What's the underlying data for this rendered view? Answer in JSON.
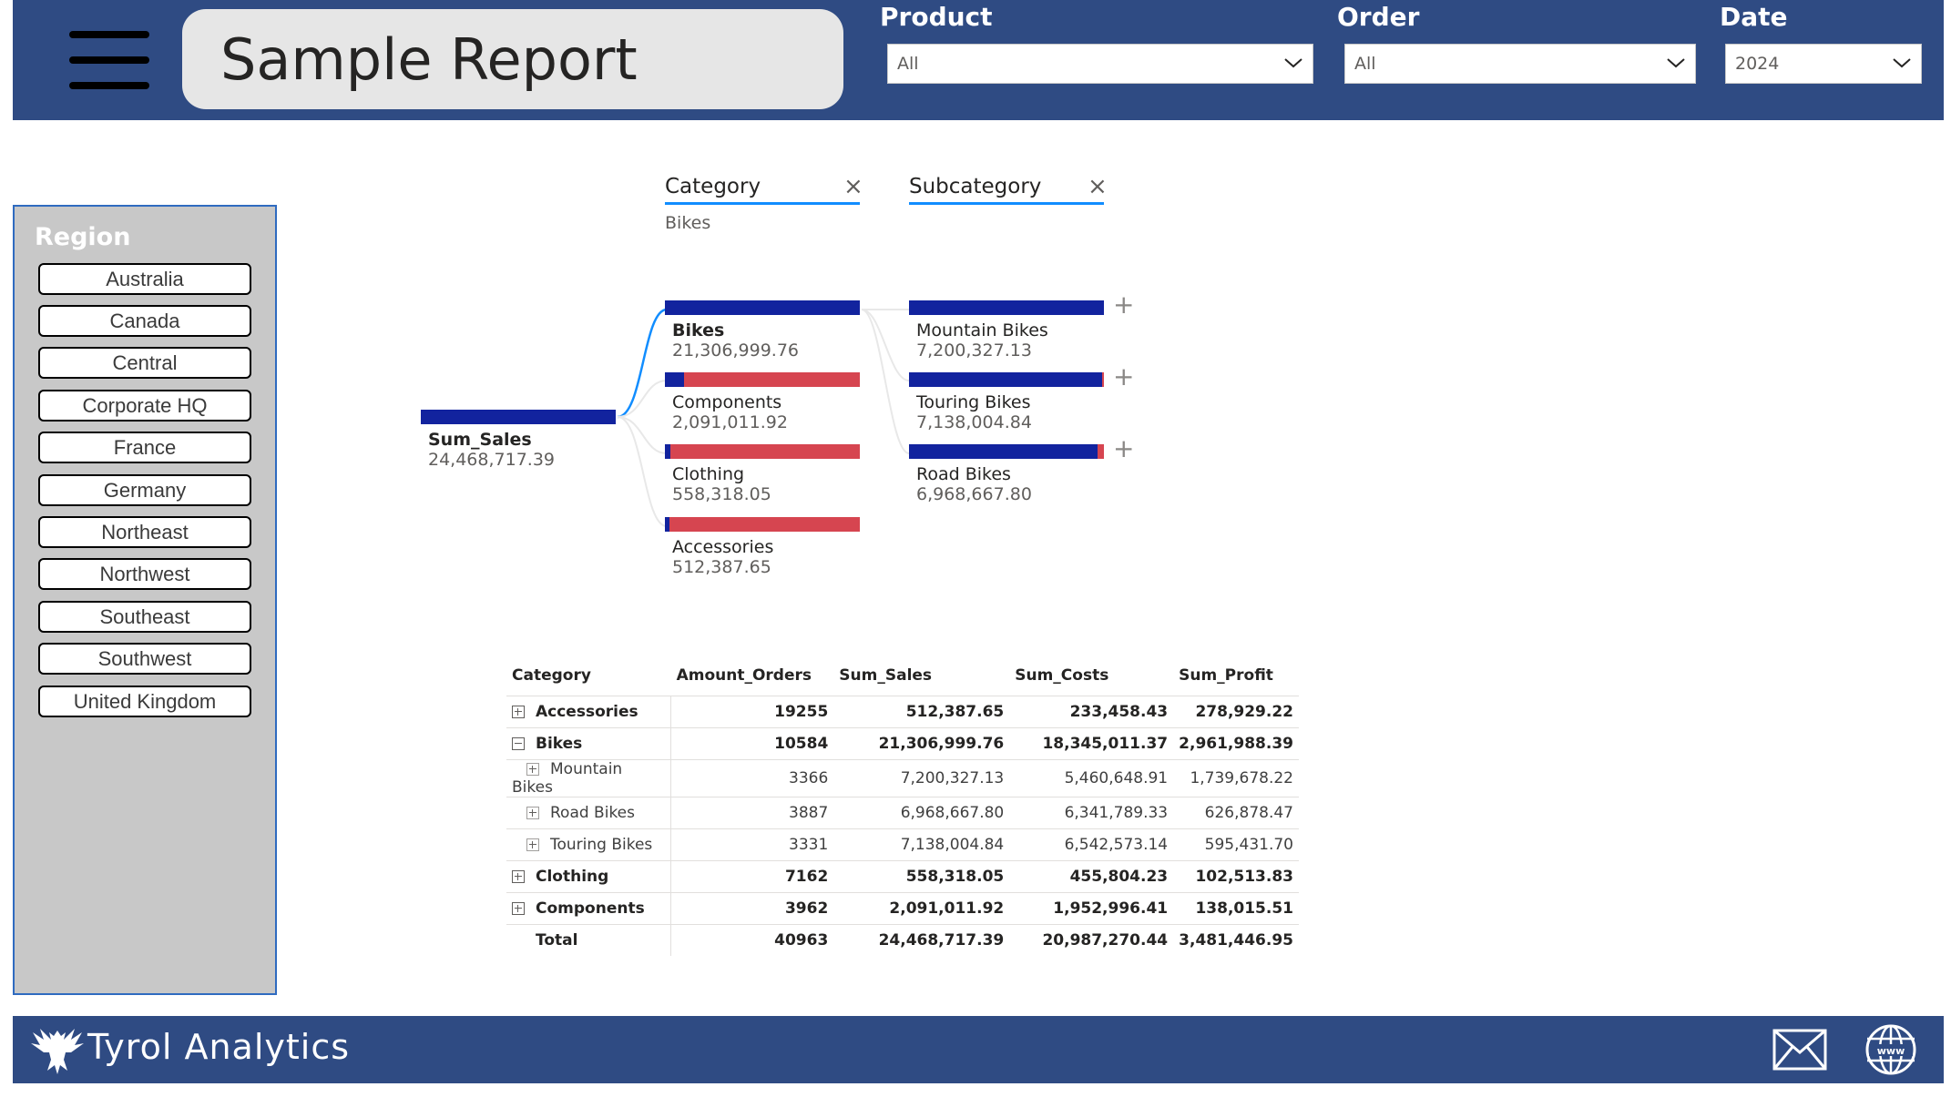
{
  "header": {
    "title": "Sample Report",
    "slicers": [
      {
        "label": "Product",
        "value": "All"
      },
      {
        "label": "Order",
        "value": "All"
      },
      {
        "label": "Date",
        "value": "2024"
      }
    ]
  },
  "region": {
    "title": "Region",
    "items": [
      "Australia",
      "Canada",
      "Central",
      "Corporate HQ",
      "France",
      "Germany",
      "Northeast",
      "Northwest",
      "Southeast",
      "Southwest",
      "United Kingdom"
    ]
  },
  "decomposition_tree": {
    "levels": [
      {
        "label": "Category",
        "selected": "Bikes"
      },
      {
        "label": "Subcategory",
        "selected": ""
      }
    ],
    "root": {
      "name": "Sum_Sales",
      "value": "24,468,717.39"
    },
    "categories": [
      {
        "name": "Bikes",
        "value": "21,306,999.76",
        "fraction": 1.0
      },
      {
        "name": "Components",
        "value": "2,091,011.92",
        "fraction": 0.098
      },
      {
        "name": "Clothing",
        "value": "558,318.05",
        "fraction": 0.026
      },
      {
        "name": "Accessories",
        "value": "512,387.65",
        "fraction": 0.024
      }
    ],
    "subcategories": [
      {
        "name": "Mountain Bikes",
        "value": "7,200,327.13",
        "fraction": 1.0
      },
      {
        "name": "Touring Bikes",
        "value": "7,138,004.84",
        "fraction": 0.991
      },
      {
        "name": "Road Bikes",
        "value": "6,968,667.80",
        "fraction": 0.968
      }
    ],
    "colors": {
      "bar": "#12239e",
      "remainder": "#d64550",
      "link": "#118dff"
    }
  },
  "matrix": {
    "columns": [
      "Category",
      "Amount_Orders",
      "Sum_Sales",
      "Sum_Costs",
      "Sum_Profit"
    ],
    "rows": [
      {
        "category": "Accessories",
        "orders": "19255",
        "sales": "512,387.65",
        "costs": "233,458.43",
        "profit": "278,929.22"
      },
      {
        "category": "Bikes",
        "orders": "10584",
        "sales": "21,306,999.76",
        "costs": "18,345,011.37",
        "profit": "2,961,988.39"
      },
      {
        "category": "Mountain Bikes",
        "orders": "3366",
        "sales": "7,200,327.13",
        "costs": "5,460,648.91",
        "profit": "1,739,678.22"
      },
      {
        "category": "Road Bikes",
        "orders": "3887",
        "sales": "6,968,667.80",
        "costs": "6,341,789.33",
        "profit": "626,878.47"
      },
      {
        "category": "Touring Bikes",
        "orders": "3331",
        "sales": "7,138,004.84",
        "costs": "6,542,573.14",
        "profit": "595,431.70"
      },
      {
        "category": "Clothing",
        "orders": "7162",
        "sales": "558,318.05",
        "costs": "455,804.23",
        "profit": "102,513.83"
      },
      {
        "category": "Components",
        "orders": "3962",
        "sales": "2,091,011.92",
        "costs": "1,952,996.41",
        "profit": "138,015.51"
      }
    ],
    "total": {
      "label": "Total",
      "orders": "40963",
      "sales": "24,468,717.39",
      "costs": "20,987,270.44",
      "profit": "3,481,446.95"
    }
  },
  "footer": {
    "brand": "Tyrol Analytics",
    "icons": [
      "eagle-logo",
      "mail-icon",
      "globe-icon"
    ]
  }
}
